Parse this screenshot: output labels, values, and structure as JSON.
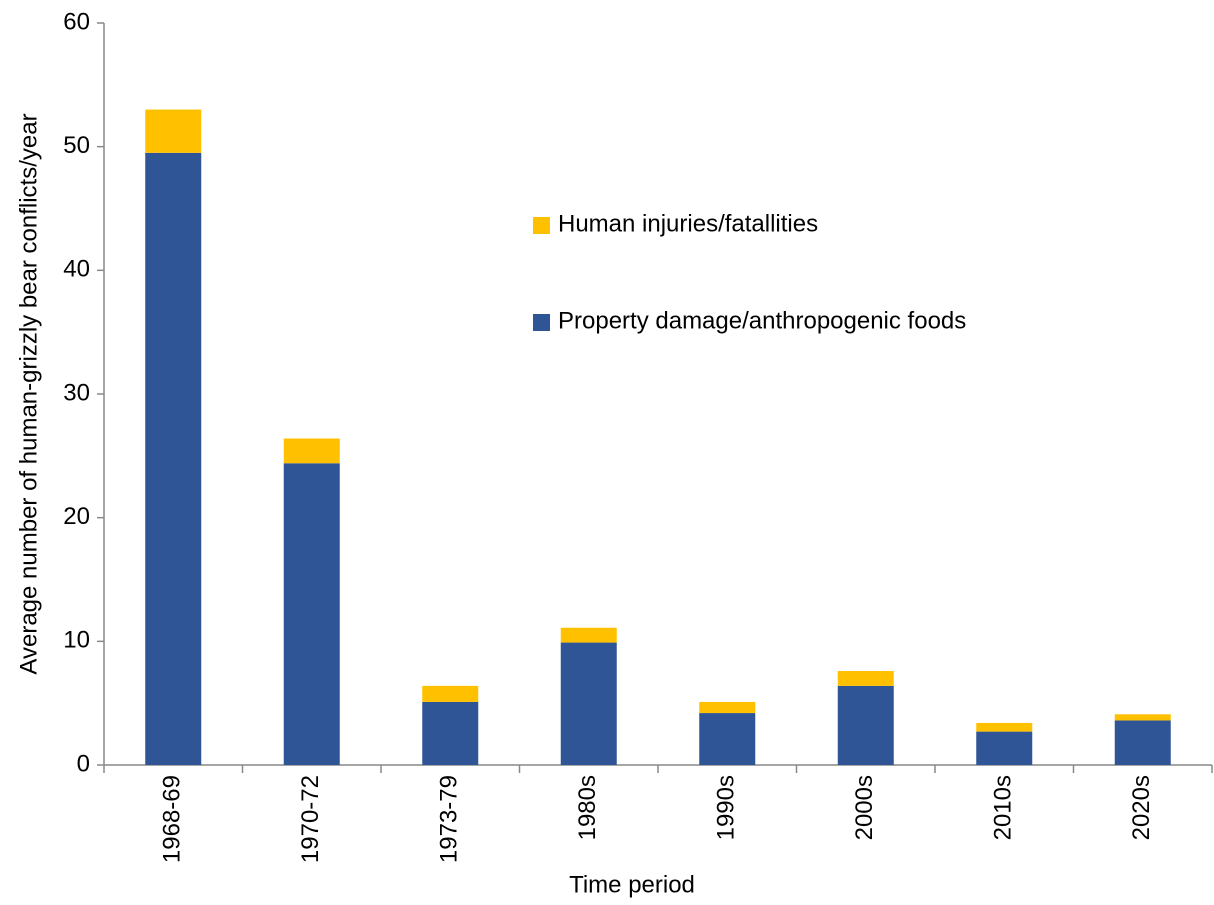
{
  "chart_data": {
    "type": "stacked_bar",
    "x_label": "Time period",
    "y_label": "Average number of human-grizzly bear conflicts/year",
    "categories": [
      "1968-69",
      "1970-72",
      "1973-79",
      "1980s",
      "1990s",
      "2000s",
      "2010s",
      "2020s"
    ],
    "series": [
      {
        "name": "Property damage/anthropogenic foods",
        "color": "#2f5597",
        "values": [
          49.5,
          24.4,
          5.1,
          9.9,
          4.2,
          6.4,
          2.7,
          3.6
        ]
      },
      {
        "name": "Human injuries/fatallities",
        "color": "#ffc000",
        "values": [
          3.5,
          2.0,
          1.3,
          1.2,
          0.9,
          1.2,
          0.7,
          0.5
        ]
      }
    ],
    "ylim": [
      0,
      60
    ],
    "yticks": [
      0,
      10,
      20,
      30,
      40,
      50,
      60
    ],
    "grid": false
  }
}
